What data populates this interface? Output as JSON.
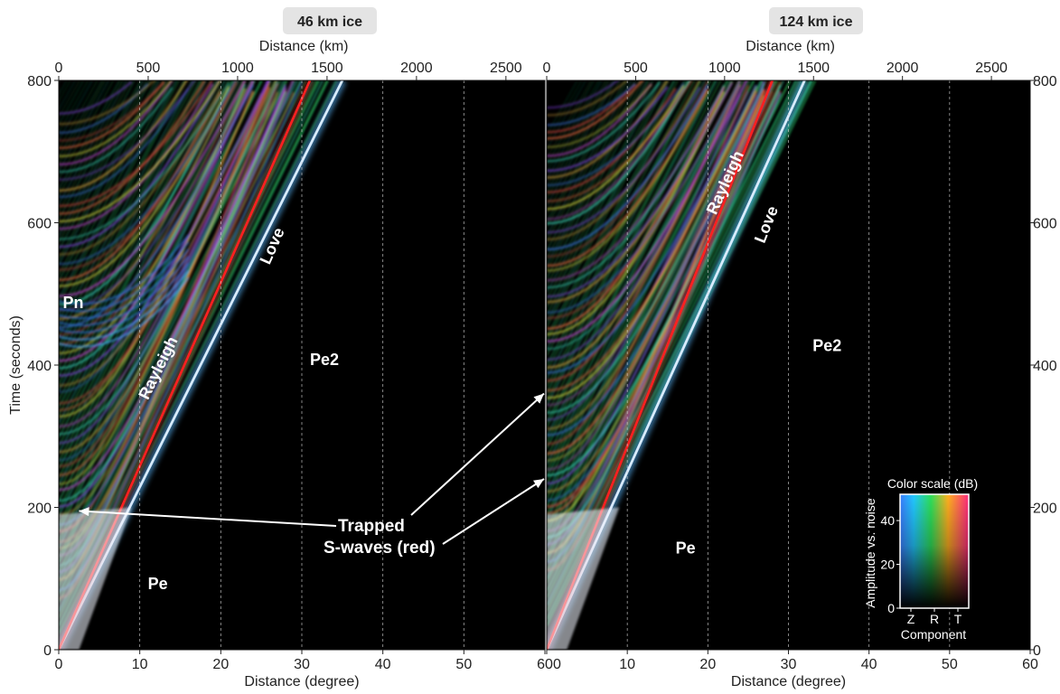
{
  "chart_data": {
    "type": "record-section",
    "ylabel": "Time (seconds)",
    "ylim": [
      0,
      800
    ],
    "yticks": [
      0,
      200,
      400,
      600,
      800
    ],
    "y_axis_right_ticks": [
      0,
      200,
      400,
      600,
      800
    ],
    "xlabel_bottom": "Distance (degree)",
    "xlim_degree": [
      0,
      60
    ],
    "xticks_degree": [
      0,
      10,
      20,
      30,
      40,
      50,
      60
    ],
    "xlabel_top": "Distance (km)",
    "xticks_km": [
      0,
      500,
      1000,
      1500,
      2000,
      2500
    ],
    "km_per_degree": 45.3,
    "gridlines": "dashed vertical at each degree tick",
    "panels": [
      {
        "title": "46 km ice",
        "phases": [
          {
            "name": "Pn",
            "label_at": [
              0.5,
              480
            ]
          },
          {
            "name": "Rayleigh",
            "label_at": [
              11,
              350
            ],
            "color": "#d8ecff",
            "line": [
              [
                0,
                0
              ],
              [
                35,
                800
              ]
            ]
          },
          {
            "name": "Love",
            "label_at": [
              26,
              540
            ],
            "color": "#ff2020",
            "line": [
              [
                0,
                0
              ],
              [
                31,
                800
              ]
            ]
          },
          {
            "name": "Pe2",
            "label_at": [
              31,
              400
            ]
          },
          {
            "name": "Pe",
            "label_at": [
              11,
              85
            ]
          }
        ]
      },
      {
        "title": "124 km ice",
        "phases": [
          {
            "name": "Rayleigh",
            "label_at": [
              21,
              610
            ],
            "color": "#d8ecff",
            "line": [
              [
                0,
                0
              ],
              [
                32,
                800
              ]
            ]
          },
          {
            "name": "Love",
            "label_at": [
              27,
              570
            ],
            "color": "#ff2020",
            "line": [
              [
                0,
                0
              ],
              [
                28,
                800
              ]
            ]
          },
          {
            "name": "Pe2",
            "label_at": [
              33,
              420
            ]
          },
          {
            "name": "Pe",
            "label_at": [
              16,
              135
            ]
          }
        ]
      }
    ],
    "annotation": {
      "text_lines": [
        "Trapped",
        "S-waves (red)"
      ],
      "arrow_targets": [
        {
          "panel": 0,
          "at": [
            2.5,
            195
          ]
        },
        {
          "panel": 1,
          "at": [
            0,
            360
          ]
        },
        {
          "panel": 1,
          "at": [
            0,
            240
          ]
        }
      ]
    },
    "color_scale": {
      "title": "Color scale (dB)",
      "ylabel": "Amplitude vs. noise",
      "yticks": [
        0,
        20,
        40
      ],
      "xlabel": "Component",
      "components": [
        "Z",
        "R",
        "T"
      ]
    }
  }
}
